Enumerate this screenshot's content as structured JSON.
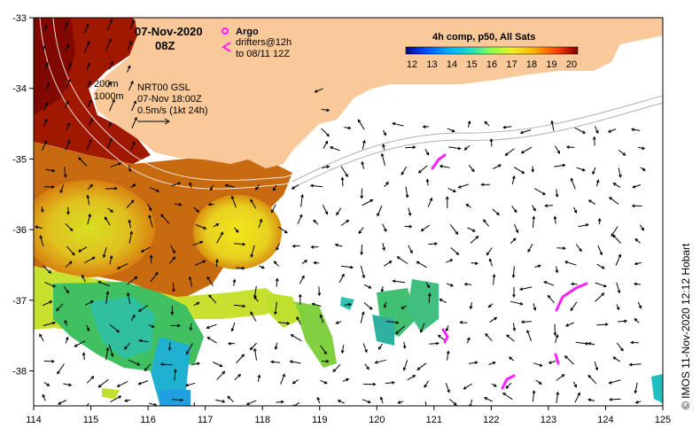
{
  "header": {
    "date": "07-Nov-2020",
    "time": "08Z"
  },
  "argo_legend": {
    "argo_label": "Argo",
    "drifters_label": "drifters@12h",
    "drifters_to": "to 08/11 12Z"
  },
  "current_legend": {
    "depth_200": "200m",
    "depth_1000": "1000m",
    "model": "NRT00 GSL",
    "model_time": "07-Nov 18:00Z",
    "speed_scale": "0.5m/s (1kt 24h)"
  },
  "colorbar": {
    "title": "4h comp, p50, All Sats",
    "ticks": [
      "12",
      "13",
      "14",
      "15",
      "16",
      "17",
      "18",
      "19",
      "20"
    ],
    "colors": [
      "#00008f",
      "#0040ff",
      "#00a0ff",
      "#20e0c0",
      "#80ff60",
      "#e0ff20",
      "#ffc000",
      "#ff6000",
      "#c00000",
      "#800000"
    ]
  },
  "axes": {
    "lon_ticks": [
      "114",
      "115",
      "116",
      "117",
      "118",
      "119",
      "120",
      "121",
      "122",
      "123",
      "124",
      "125"
    ],
    "lat_ticks": [
      "-33",
      "-34",
      "-35",
      "-36",
      "-37",
      "-38"
    ]
  },
  "credit": "© IMOS 11-Nov-2020 12:12 Hobart",
  "map_colors": {
    "land": "#f9c99a",
    "sst_warm": "#a01a00",
    "sst_orange": "#d9700a",
    "sst_yellow": "#e8e020",
    "sst_lime": "#a0e040",
    "sst_green": "#40c060",
    "sst_teal": "#30c0b0",
    "drifter": "#ff20ff"
  }
}
